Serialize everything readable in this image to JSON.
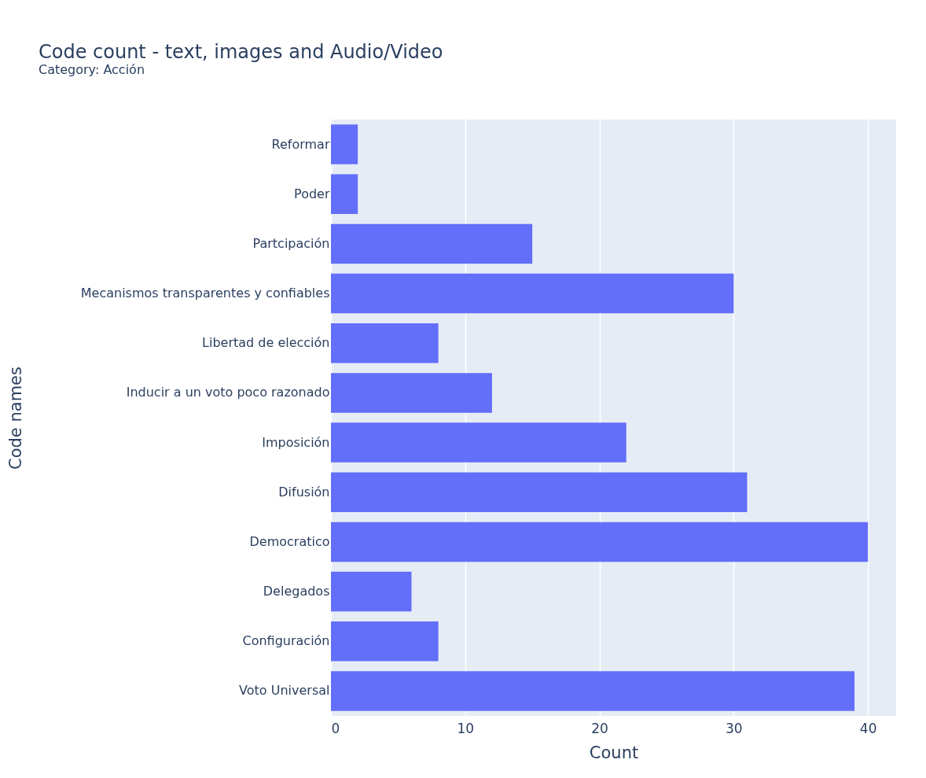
{
  "chart_data": {
    "type": "bar",
    "orientation": "horizontal",
    "title": "Code count - text, images and Audio/Video",
    "subtitle": "Category: Acción",
    "xlabel": "Count",
    "ylabel": "Code names",
    "categories": [
      "Reformar",
      "Poder",
      "Partcipación",
      "Mecanismos transparentes y confiables",
      "Libertad de elección",
      "Inducir a un voto poco razonado",
      "Imposición",
      "Difusión ",
      "Democratico",
      "Delegados",
      "Configuración",
      "Voto Universal"
    ],
    "values": [
      2,
      2,
      15,
      30,
      8,
      12,
      22,
      31,
      40,
      6,
      8,
      39
    ],
    "color": "#636efa",
    "xlim": [
      0,
      42.1
    ],
    "xticks": [
      0,
      10,
      20,
      30,
      40
    ],
    "grid": "x"
  }
}
